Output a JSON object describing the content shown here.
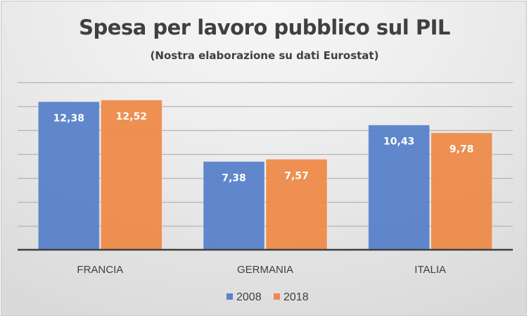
{
  "chart_data": {
    "type": "bar",
    "title": "Spesa per lavoro pubblico sul PIL",
    "subtitle": "(Nostra elaborazione su dati Eurostat)",
    "categories": [
      "FRANCIA",
      "GERMANIA",
      "ITALIA"
    ],
    "series": [
      {
        "name": "2008",
        "values": [
          12.38,
          7.38,
          10.43
        ],
        "labels": [
          "12,38",
          "7,38",
          "10,43"
        ],
        "color": "#5b83c9"
      },
      {
        "name": "2018",
        "values": [
          12.52,
          7.57,
          9.78
        ],
        "labels": [
          "12,52",
          "7,57",
          "9,78"
        ],
        "color": "#ec8c4c"
      }
    ],
    "xlabel": "",
    "ylabel": "",
    "ylim": [
      0,
      14
    ],
    "ytick_step": 2,
    "grid": true,
    "y_tick_labels_visible": false,
    "legend_position": "bottom"
  }
}
